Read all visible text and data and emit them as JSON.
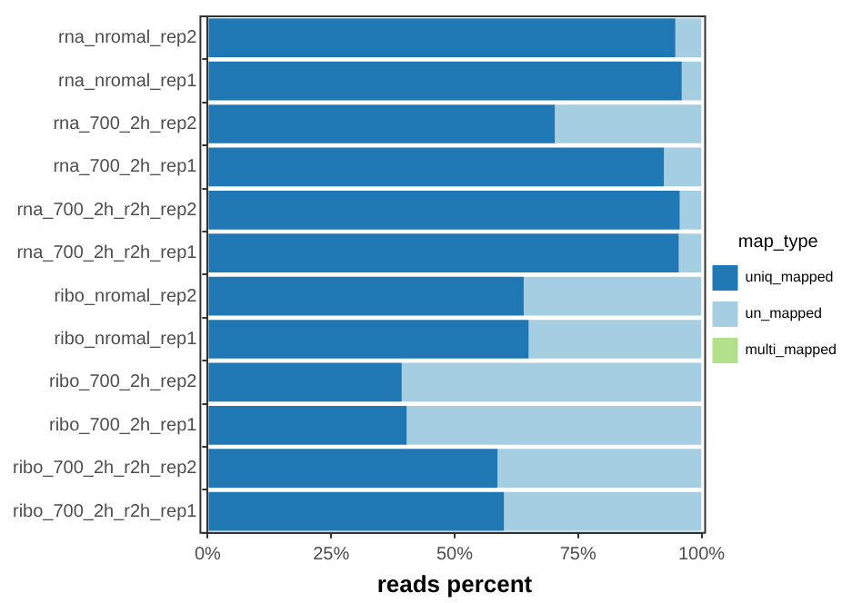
{
  "chart_data": {
    "type": "bar",
    "orientation": "horizontal",
    "stacked": true,
    "xlabel": "reads percent",
    "legend_title": "map_type",
    "legend": "right",
    "grid": false,
    "categories": [
      "rna_nromal_rep2",
      "rna_nromal_rep1",
      "rna_700_2h_rep2",
      "rna_700_2h_rep1",
      "rna_700_2h_r2h_rep2",
      "rna_700_2h_r2h_rep1",
      "ribo_nromal_rep2",
      "ribo_nromal_rep1",
      "ribo_700_2h_rep2",
      "ribo_700_2h_rep1",
      "ribo_700_2h_r2h_rep2",
      "ribo_700_2h_r2h_rep1"
    ],
    "series": [
      {
        "name": "uniq_mapped",
        "color": "#1f78b4",
        "values": [
          94.7,
          96.0,
          70.3,
          92.4,
          95.6,
          95.4,
          64.0,
          65.0,
          39.3,
          40.3,
          58.7,
          60.0
        ]
      },
      {
        "name": "un_mapped",
        "color": "#a6cee3",
        "values": [
          5.3,
          4.0,
          29.7,
          7.6,
          4.4,
          4.6,
          36.0,
          35.0,
          60.7,
          59.7,
          41.3,
          40.0
        ]
      },
      {
        "name": "multi_mapped",
        "color": "#b2df8a",
        "values": [
          0,
          0,
          0,
          0,
          0,
          0,
          0,
          0,
          0,
          0,
          0,
          0
        ]
      }
    ],
    "xlim": [
      0,
      100
    ],
    "xticks": [
      {
        "value": 0,
        "label": "0%"
      },
      {
        "value": 25,
        "label": "25%"
      },
      {
        "value": 50,
        "label": "50%"
      },
      {
        "value": 75,
        "label": "75%"
      },
      {
        "value": 100,
        "label": "100%"
      }
    ]
  }
}
